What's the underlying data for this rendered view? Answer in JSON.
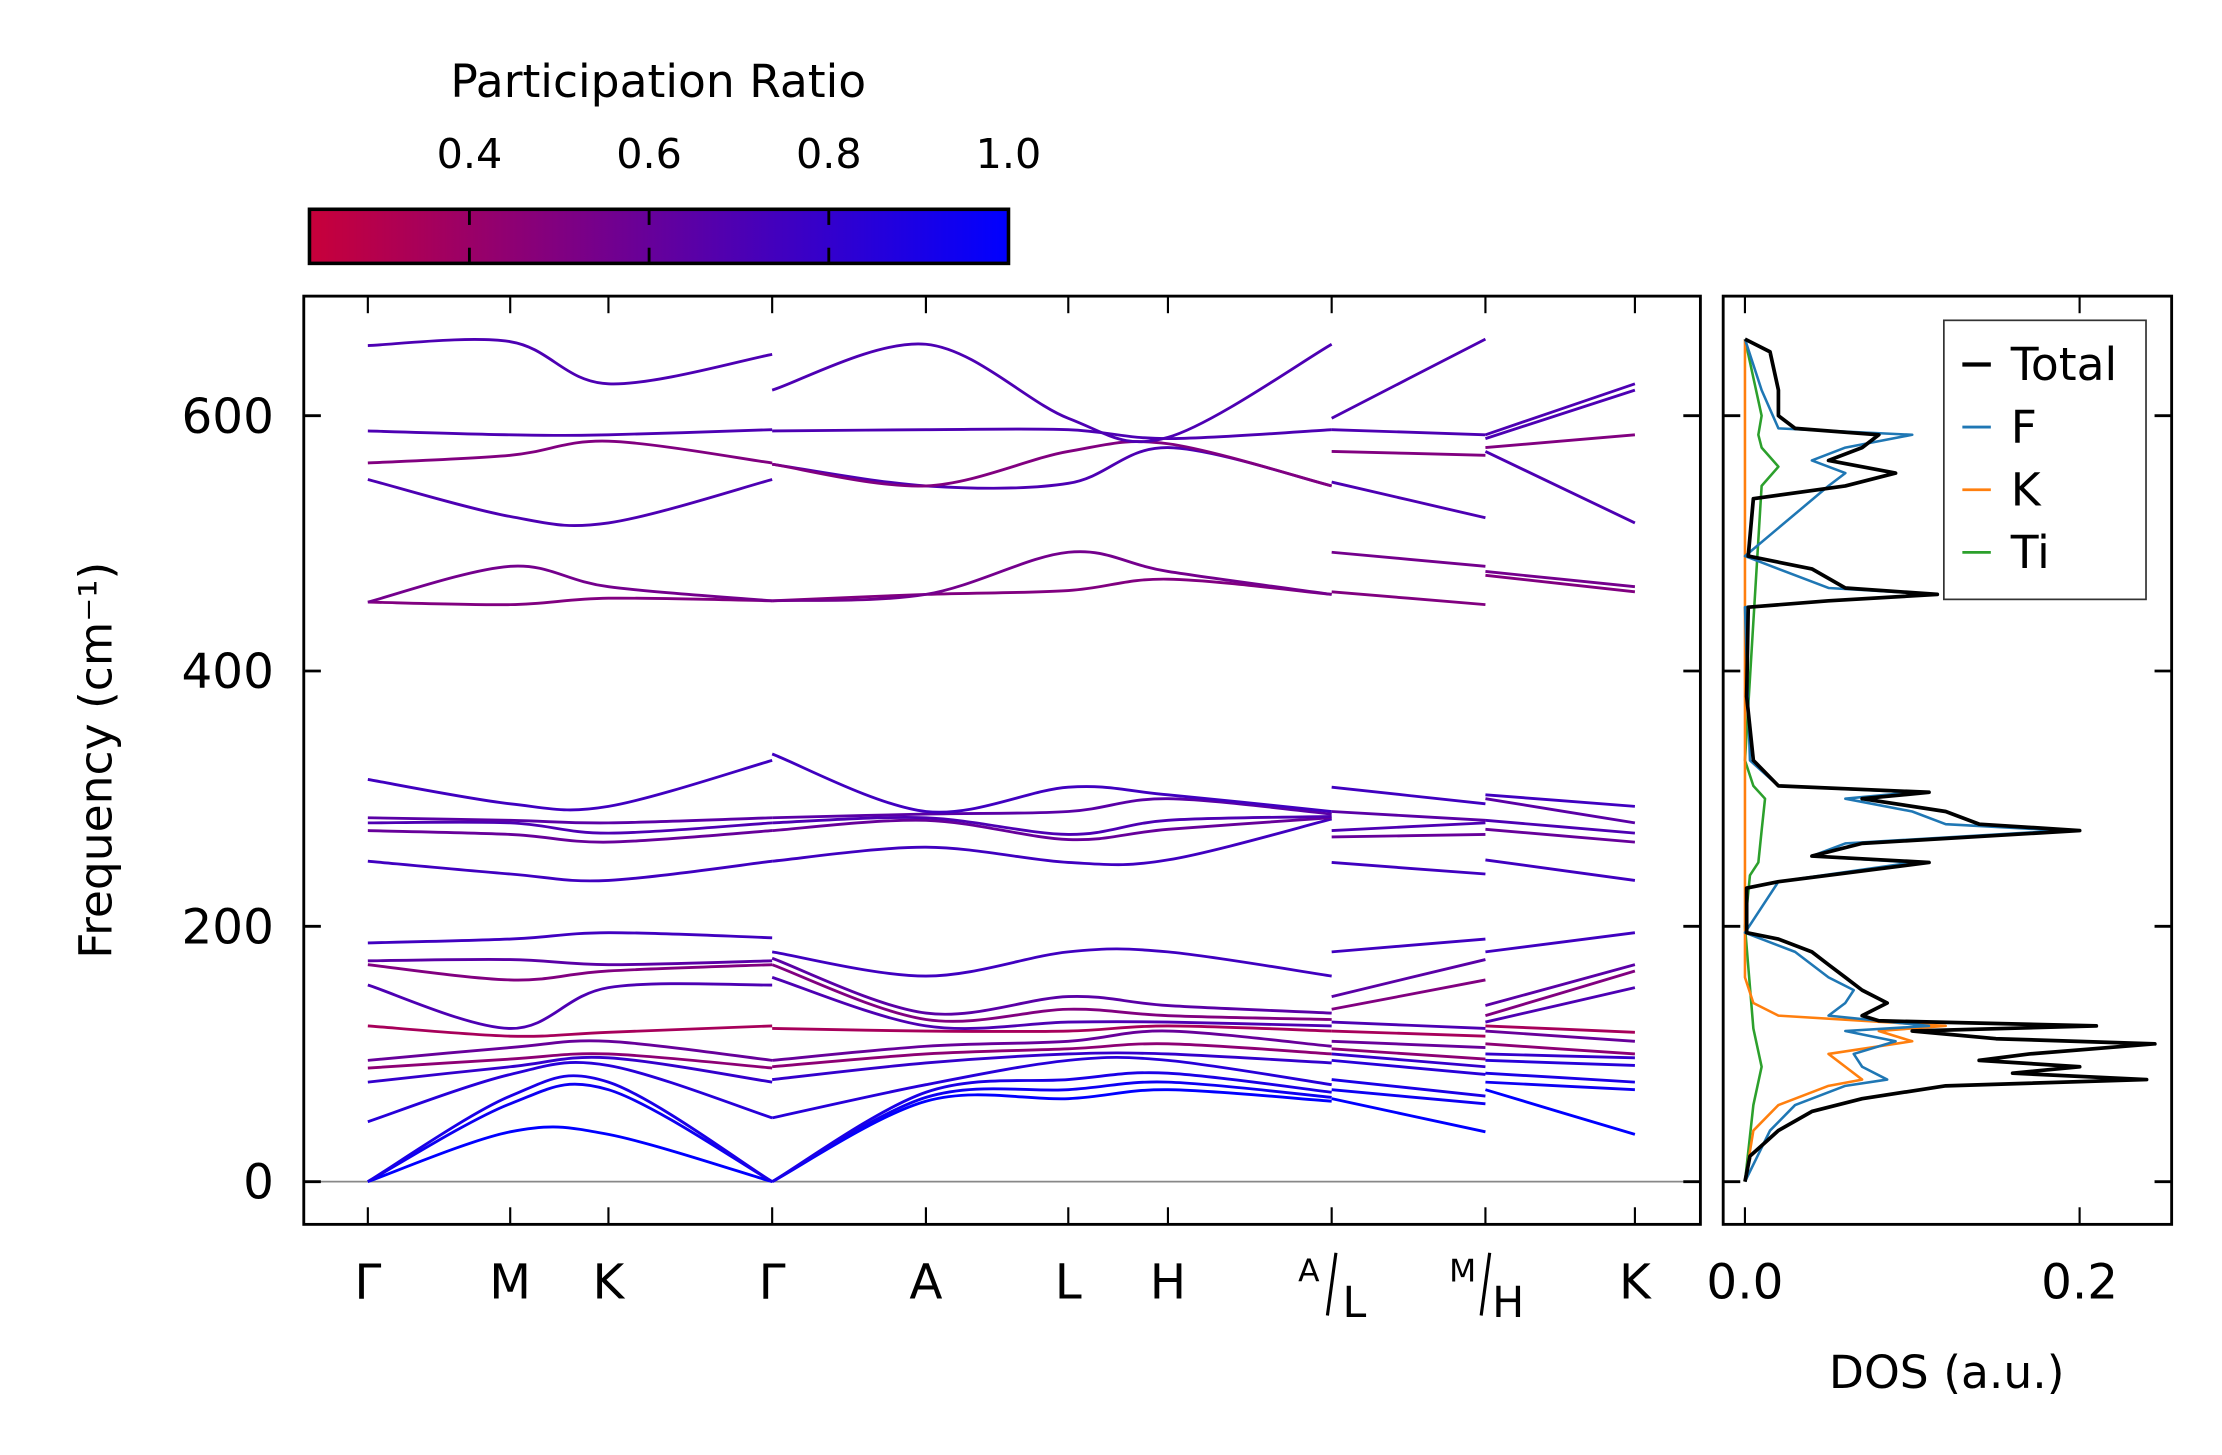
{
  "chart_data": [
    {
      "type": "line",
      "title": "",
      "xlabel": "",
      "ylabel": "Frequency (cm⁻¹)",
      "ylim": [
        -33,
        694
      ],
      "yticks": [
        "0",
        "200",
        "400",
        "600"
      ],
      "ytick_values": [
        0,
        200,
        400,
        600
      ],
      "kpath": {
        "labels": [
          "Γ",
          "M",
          "K",
          "Γ",
          "A",
          "L",
          "H",
          "A/L",
          "M/H",
          "K"
        ],
        "label_parts": [
          [
            "Γ",
            ""
          ],
          [
            "M",
            ""
          ],
          [
            "K",
            ""
          ],
          [
            "Γ",
            ""
          ],
          [
            "A",
            ""
          ],
          [
            "L",
            ""
          ],
          [
            "H",
            ""
          ],
          [
            "A",
            "L"
          ],
          [
            "M",
            "H"
          ],
          [
            "K",
            ""
          ]
        ],
        "positions": [
          0,
          1.0,
          1.69,
          2.84,
          3.92,
          4.92,
          5.62,
          6.77,
          7.85,
          8.9
        ]
      },
      "segments": [
        {
          "k": [
            0,
            1.0,
            1.69,
            2.84
          ],
          "freqs": [
            [
              0,
              0,
              0,
              47,
              78,
              89,
              95,
              122,
              154,
              170,
              173,
              187,
              251,
              275,
              281,
              285,
              315,
              454,
              454,
              550,
              563,
              588,
              655
            ],
            [
              39,
              61,
              67,
              84,
              90,
              96,
              105,
              114,
              120,
              158,
              174,
              190,
              241,
              272,
              281,
              283,
              296,
              452,
              482,
              521,
              569,
              585,
              658
            ],
            [
              37,
              72,
              78,
              91,
              97,
              100,
              110,
              117,
              152,
              165,
              170,
              195,
              236,
              266,
              273,
              281,
              294,
              457,
              466,
              516,
              580,
              585,
              625
            ],
            [
              0,
              0,
              0,
              50,
              78,
              89,
              95,
              122,
              154,
              170,
              173,
              191,
              251,
              275,
              281,
              285,
              330,
              455,
              455,
              550,
              563,
              589,
              648
            ]
          ]
        },
        {
          "k": [
            2.84,
            3.92,
            4.92,
            5.62,
            6.77
          ],
          "freqs": [
            [
              0,
              0,
              0,
              50,
              80,
              90,
              95,
              120,
              160,
              170,
              175,
              180,
              251,
              275,
              281,
              285,
              335,
              455,
              455,
              562,
              562,
              588,
              620
            ],
            [
              63,
              66,
              70,
              76,
              93,
              100,
              106,
              118,
              122,
              127,
              132,
              161,
              262,
              283,
              285,
              288,
              290,
              460,
              460,
              545,
              545,
              589,
              656
            ],
            [
              65,
              72,
              80,
              95,
              100,
              104,
              110,
              118,
              125,
              135,
              145,
              180,
              250,
              268,
              272,
              290,
              309,
              463,
              493,
              547,
              572,
              589,
              598
            ],
            [
              72,
              78,
              85,
              95,
              100,
              108,
              118,
              122,
              125,
              130,
              138,
              180,
              252,
              276,
              283,
              300,
              303,
              472,
              478,
              575,
              578,
              582,
              583
            ],
            [
              63,
              66,
              70,
              76,
              93,
              100,
              106,
              118,
              122,
              127,
              132,
              161,
              284,
              285,
              286,
              288,
              290,
              460,
              460,
              545,
              545,
              589,
              656
            ]
          ]
        },
        {
          "k": [
            6.77,
            7.85
          ],
          "freqs": [
            [
              65,
              72,
              80,
              95,
              100,
              104,
              110,
              118,
              125,
              135,
              145,
              180,
              250,
              270,
              275,
              290,
              309,
              462,
              493,
              548,
              572,
              589,
              598
            ],
            [
              39,
              61,
              67,
              84,
              90,
              96,
              105,
              114,
              120,
              158,
              174,
              190,
              241,
              272,
              281,
              283,
              296,
              452,
              482,
              520,
              569,
              585,
              660
            ]
          ]
        },
        {
          "k": [
            7.85,
            8.9
          ],
          "freqs": [
            [
              72,
              78,
              85,
              95,
              100,
              108,
              118,
              122,
              125,
              130,
              138,
              180,
              252,
              276,
              283,
              300,
              303,
              475,
              478,
              572,
              575,
              582,
              585
            ],
            [
              37,
              72,
              78,
              91,
              97,
              100,
              110,
              117,
              152,
              165,
              170,
              195,
              236,
              266,
              273,
              281,
              294,
              462,
              466,
              516,
              585,
              620,
              625
            ]
          ]
        }
      ],
      "band_participation": [
        1.0,
        0.95,
        0.9,
        0.85,
        0.8,
        0.45,
        0.6,
        0.35,
        0.7,
        0.5,
        0.65,
        0.75,
        0.75,
        0.6,
        0.7,
        0.65,
        0.75,
        0.5,
        0.55,
        0.7,
        0.5,
        0.7,
        0.7
      ],
      "zero_line": 0
    },
    {
      "type": "line",
      "xlabel": "DOS (a.u.)",
      "xlim": [
        -0.013,
        0.255
      ],
      "xticks": [
        "0.0",
        "0.2"
      ],
      "xtick_values": [
        0.0,
        0.2
      ],
      "ylim": [
        -33,
        694
      ],
      "legend_position": "top-right",
      "series": [
        {
          "name": "Total",
          "color": "#000000",
          "points": [
            [
              0,
              0
            ],
            [
              20,
              0.003
            ],
            [
              40,
              0.02
            ],
            [
              55,
              0.04
            ],
            [
              65,
              0.07
            ],
            [
              75,
              0.12
            ],
            [
              80,
              0.24
            ],
            [
              85,
              0.16
            ],
            [
              90,
              0.2
            ],
            [
              95,
              0.14
            ],
            [
              100,
              0.17
            ],
            [
              108,
              0.245
            ],
            [
              112,
              0.15
            ],
            [
              118,
              0.1
            ],
            [
              122,
              0.21
            ],
            [
              126,
              0.08
            ],
            [
              130,
              0.07
            ],
            [
              140,
              0.085
            ],
            [
              150,
              0.07
            ],
            [
              160,
              0.06
            ],
            [
              170,
              0.05
            ],
            [
              180,
              0.04
            ],
            [
              190,
              0.02
            ],
            [
              195,
              0.001
            ],
            [
              230,
              0.001
            ],
            [
              235,
              0.02
            ],
            [
              250,
              0.11
            ],
            [
              255,
              0.04
            ],
            [
              265,
              0.07
            ],
            [
              275,
              0.2
            ],
            [
              280,
              0.14
            ],
            [
              290,
              0.12
            ],
            [
              300,
              0.07
            ],
            [
              305,
              0.11
            ],
            [
              310,
              0.02
            ],
            [
              330,
              0.005
            ],
            [
              380,
              0.001
            ],
            [
              450,
              0.002
            ],
            [
              455,
              0.05
            ],
            [
              460,
              0.115
            ],
            [
              465,
              0.06
            ],
            [
              480,
              0.04
            ],
            [
              490,
              0.002
            ],
            [
              535,
              0.005
            ],
            [
              545,
              0.06
            ],
            [
              555,
              0.09
            ],
            [
              565,
              0.05
            ],
            [
              575,
              0.07
            ],
            [
              585,
              0.08
            ],
            [
              590,
              0.03
            ],
            [
              600,
              0.02
            ],
            [
              620,
              0.02
            ],
            [
              650,
              0.015
            ],
            [
              660,
              0
            ]
          ]
        },
        {
          "name": "F",
          "color": "#1f77b4",
          "points": [
            [
              0,
              0
            ],
            [
              40,
              0.015
            ],
            [
              60,
              0.03
            ],
            [
              75,
              0.06
            ],
            [
              80,
              0.085
            ],
            [
              90,
              0.07
            ],
            [
              100,
              0.065
            ],
            [
              110,
              0.09
            ],
            [
              118,
              0.06
            ],
            [
              122,
              0.11
            ],
            [
              130,
              0.05
            ],
            [
              140,
              0.06
            ],
            [
              150,
              0.065
            ],
            [
              160,
              0.05
            ],
            [
              180,
              0.03
            ],
            [
              195,
              0
            ],
            [
              235,
              0.02
            ],
            [
              250,
              0.1
            ],
            [
              255,
              0.04
            ],
            [
              265,
              0.06
            ],
            [
              275,
              0.19
            ],
            [
              280,
              0.12
            ],
            [
              290,
              0.1
            ],
            [
              300,
              0.06
            ],
            [
              305,
              0.1
            ],
            [
              310,
              0.02
            ],
            [
              330,
              0.003
            ],
            [
              450,
              0
            ],
            [
              455,
              0.05
            ],
            [
              460,
              0.115
            ],
            [
              465,
              0.05
            ],
            [
              490,
              0
            ],
            [
              545,
              0.05
            ],
            [
              555,
              0.06
            ],
            [
              565,
              0.04
            ],
            [
              575,
              0.06
            ],
            [
              585,
              0.1
            ],
            [
              590,
              0.02
            ],
            [
              620,
              0.01
            ],
            [
              660,
              0
            ]
          ]
        },
        {
          "name": "K",
          "color": "#ff7f0e",
          "points": [
            [
              0,
              0
            ],
            [
              40,
              0.005
            ],
            [
              60,
              0.02
            ],
            [
              75,
              0.05
            ],
            [
              80,
              0.07
            ],
            [
              90,
              0.06
            ],
            [
              100,
              0.05
            ],
            [
              110,
              0.1
            ],
            [
              118,
              0.08
            ],
            [
              122,
              0.12
            ],
            [
              130,
              0.02
            ],
            [
              140,
              0.005
            ],
            [
              160,
              0
            ],
            [
              660,
              0
            ]
          ]
        },
        {
          "name": "Ti",
          "color": "#2ca02c",
          "points": [
            [
              0,
              0
            ],
            [
              60,
              0.005
            ],
            [
              90,
              0.01
            ],
            [
              120,
              0.005
            ],
            [
              200,
              0
            ],
            [
              240,
              0.003
            ],
            [
              250,
              0.008
            ],
            [
              275,
              0.01
            ],
            [
              300,
              0.012
            ],
            [
              310,
              0.005
            ],
            [
              330,
              0
            ],
            [
              545,
              0.01
            ],
            [
              560,
              0.02
            ],
            [
              575,
              0.01
            ],
            [
              585,
              0.008
            ],
            [
              600,
              0.01
            ],
            [
              660,
              0
            ]
          ]
        }
      ]
    },
    {
      "type": "colorbar",
      "title": "Participation Ratio",
      "range": [
        0.222,
        1.0
      ],
      "ticks": [
        "0.4",
        "0.6",
        "0.8",
        "1.0"
      ],
      "tick_values": [
        0.4,
        0.6,
        0.8,
        1.0
      ],
      "color_low": "#c8003a",
      "color_high": "#0000ff"
    }
  ]
}
